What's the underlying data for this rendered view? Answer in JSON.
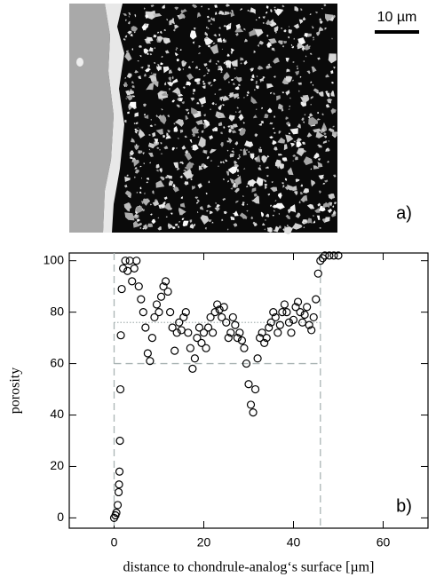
{
  "image_panel": {
    "scale_label": "10 µm",
    "panel_label": "a)"
  },
  "chart_data": {
    "type": "scatter",
    "panel_label": "b)",
    "xlabel": "distance to chondrule-analog‘s surface [µm]",
    "ylabel": "porosity",
    "xlim": [
      -10,
      70
    ],
    "ylim": [
      -4,
      103
    ],
    "xticks": [
      0,
      20,
      40,
      60
    ],
    "yticks": [
      0,
      20,
      40,
      60,
      80,
      100
    ],
    "vlines": [
      0,
      46
    ],
    "hlines": [
      {
        "value": 60,
        "style": "dashed"
      },
      {
        "value": 76,
        "style": "dotted"
      }
    ],
    "color": "#000000",
    "x": [
      0,
      0.3,
      0.5,
      0.8,
      1.0,
      1.1,
      1.2,
      1.3,
      1.4,
      1.5,
      1.7,
      2,
      2.5,
      3,
      3.5,
      4,
      4.5,
      5,
      5.5,
      6,
      6.5,
      7,
      7.5,
      8,
      8.5,
      9,
      9.5,
      10,
      10.5,
      11,
      11.5,
      12,
      12.5,
      13,
      13.5,
      14,
      14.5,
      15,
      15.5,
      16,
      16.5,
      17,
      17.5,
      18,
      18.5,
      19,
      19.5,
      20,
      20.5,
      21,
      21.5,
      22,
      22.5,
      23,
      23.5,
      24,
      24.5,
      25,
      25.5,
      26,
      26.5,
      27,
      27.5,
      28,
      28.5,
      29,
      29.5,
      30,
      30.5,
      31,
      31.5,
      32,
      32.5,
      33,
      33.5,
      34,
      34.5,
      35,
      35.5,
      36,
      36.5,
      37,
      37.5,
      38,
      38.5,
      39,
      39.5,
      40,
      40.5,
      41,
      41.5,
      42,
      42.5,
      43,
      43.5,
      44,
      44.5,
      45,
      45.5,
      46,
      46.5,
      47,
      48,
      49,
      50
    ],
    "y": [
      0,
      1,
      2,
      5,
      10,
      13,
      18,
      30,
      50,
      71,
      89,
      97,
      100,
      96,
      100,
      92,
      97,
      100,
      90,
      85,
      80,
      74,
      64,
      61,
      70,
      78,
      83,
      80,
      86,
      90,
      92,
      88,
      80,
      74,
      65,
      72,
      76,
      73,
      78,
      80,
      72,
      66,
      58,
      62,
      70,
      74,
      68,
      72,
      66,
      74,
      78,
      72,
      80,
      83,
      81,
      78,
      82,
      76,
      70,
      72,
      78,
      75,
      70,
      72,
      69,
      66,
      60,
      52,
      44,
      41,
      50,
      62,
      70,
      72,
      68,
      70,
      74,
      76,
      80,
      78,
      72,
      75,
      80,
      83,
      80,
      76,
      72,
      77,
      82,
      84,
      80,
      76,
      79,
      82,
      75,
      73,
      78,
      85,
      95,
      100,
      101,
      102,
      102,
      102,
      102
    ]
  }
}
